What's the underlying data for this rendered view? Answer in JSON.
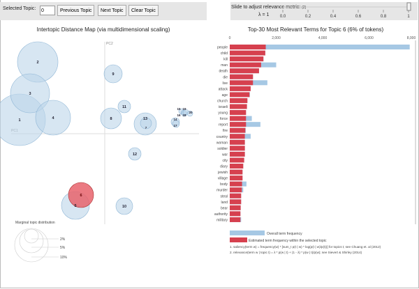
{
  "controls": {
    "selected_topic_label": "Selected Topic:",
    "selected_topic_value": "0",
    "previous_label": "Previous Topic",
    "next_label": "Next Topic",
    "clear_label": "Clear Topic",
    "slider_label": "Slide to adjust relevance metric:",
    "slider_footnote": "(2)",
    "lambda_text": "λ = 1",
    "lambda_value": 1,
    "slider_ticks": [
      "0.0",
      "0.2",
      "0.4",
      "0.6",
      "0.8",
      "1"
    ]
  },
  "map": {
    "title": "Intertopic Distance Map (via multidimensional scaling)",
    "x_axis": "PC1",
    "y_axis": "PC2",
    "selected_topic": "6",
    "topics": [
      "1",
      "2",
      "3",
      "4",
      "5",
      "6",
      "7",
      "8",
      "9",
      "10",
      "11",
      "12",
      "13",
      "14",
      "15",
      "16",
      "17",
      "18",
      "19",
      "20"
    ],
    "legend_title": "Marginal topic distribution",
    "legend_items": [
      "2%",
      "5%",
      "10%"
    ]
  },
  "bars": {
    "title": "Top-30 Most Relevant Terms for Topic 6 (6% of tokens)",
    "ticks": [
      "0",
      "2,000",
      "4,000",
      "6,000",
      "8,000"
    ],
    "terms": [
      "people",
      "child",
      "kill",
      "man",
      "death",
      "die",
      "live",
      "attack",
      "age",
      "church",
      "israeli",
      "young",
      "force",
      "report",
      "fire",
      "country",
      "woman",
      "soldier",
      "war",
      "city",
      "diary",
      "jewish",
      "village",
      "body",
      "murder",
      "steal",
      "land",
      "bear",
      "authority",
      "military"
    ],
    "overall": [
      7750,
      1530,
      1450,
      2000,
      1260,
      1000,
      1620,
      900,
      870,
      760,
      740,
      700,
      950,
      1320,
      690,
      900,
      650,
      650,
      650,
      620,
      580,
      550,
      550,
      720,
      580,
      490,
      490,
      470,
      460,
      490
    ],
    "estimated": [
      1550,
      1530,
      1450,
      1350,
      1260,
      1000,
      1000,
      900,
      850,
      760,
      740,
      700,
      700,
      700,
      670,
      650,
      650,
      650,
      650,
      620,
      580,
      550,
      550,
      530,
      520,
      490,
      490,
      470,
      460,
      460
    ],
    "legend_overall": "Overall term frequency",
    "legend_estimated": "Estimated term frequency within the selected topic",
    "footnote1": "1. saliency(term w) = frequency(w) * [sum_t p(t | w) * log(p(t | w)/p(t))] for topics t; see Chuang et. al (2012)",
    "footnote2": "2. relevance(term w | topic t) = λ * p(w | t) + (1 - λ) * p(w | t)/p(w); see Sievert & Shirley (2014)"
  },
  "colors": {
    "overall": "#a6c8e4",
    "estimated": "#d6404e",
    "circle": "#bcd6ea",
    "selected": "#e8636c"
  }
}
